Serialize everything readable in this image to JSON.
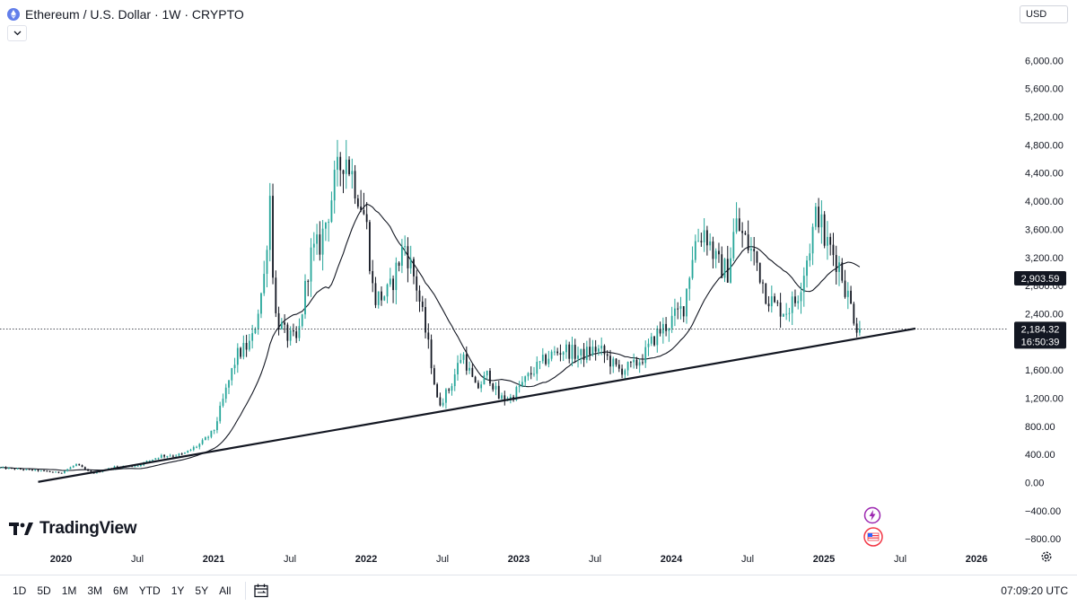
{
  "header": {
    "title": "Ethereum / U.S. Dollar · 1W · CRYPTO",
    "collapse_icon": "chevron-down-icon",
    "symbol_icon": "ethereum-icon"
  },
  "currency": {
    "label": "USD"
  },
  "logo": {
    "text": "TradingView"
  },
  "bottom_bar": {
    "ranges": [
      "1D",
      "5D",
      "1M",
      "3M",
      "6M",
      "YTD",
      "1Y",
      "5Y",
      "All"
    ],
    "time": "07:09:20 UTC"
  },
  "chart_data": {
    "type": "candlestick",
    "symbol": "ETHUSD",
    "interval": "1W",
    "colors": {
      "up": "#26a69a",
      "down": "#131722",
      "ma": "#131722",
      "trendline": "#131722",
      "crosshair": "#131722"
    },
    "y_axis": {
      "ylim": [
        -950,
        6400
      ],
      "ticks": [
        -800,
        -400,
        0,
        400,
        800,
        1200,
        1600,
        2000,
        2400,
        2800,
        3200,
        3600,
        4000,
        4400,
        4800,
        5200,
        5600,
        6000
      ],
      "tick_labels": [
        "−800.00",
        "−400.00",
        "0.00",
        "400.00",
        "800.00",
        "1,200.00",
        "1,600.00",
        "",
        "2,400.00",
        "2,800.00",
        "3,200.00",
        "3,600.00",
        "4,000.00",
        "4,400.00",
        "4,800.00",
        "5,200.00",
        "5,600.00",
        "6,000.00"
      ]
    },
    "x_axis": {
      "xlim": [
        2019.6,
        2026.2
      ],
      "ticks": [
        2020.0,
        2020.5,
        2021.0,
        2021.5,
        2022.0,
        2022.5,
        2023.0,
        2023.5,
        2024.0,
        2024.5,
        2025.0,
        2025.5,
        2026.0
      ],
      "tick_labels": [
        "2020",
        "Jul",
        "2021",
        "Jul",
        "2022",
        "Jul",
        "2023",
        "Jul",
        "2024",
        "Jul",
        "2025",
        "Jul",
        "2026"
      ]
    },
    "price_labels": [
      {
        "value": 2903.59,
        "text": "2,903.59",
        "style": "dark"
      },
      {
        "value": 2184.32,
        "text": "2,184.32",
        "countdown": "16:50:39",
        "style": "dark"
      }
    ],
    "crosshair_price": 2184.32,
    "trendline": {
      "x": [
        2019.85,
        2025.6
      ],
      "y": [
        10,
        2190
      ]
    },
    "price_path": [
      [
        2019.6,
        210
      ],
      [
        2019.85,
        170
      ],
      [
        2020.0,
        140
      ],
      [
        2020.1,
        260
      ],
      [
        2020.2,
        130
      ],
      [
        2020.35,
        220
      ],
      [
        2020.5,
        240
      ],
      [
        2020.65,
        380
      ],
      [
        2020.8,
        400
      ],
      [
        2020.92,
        560
      ],
      [
        2021.0,
        730
      ],
      [
        2021.08,
        1300
      ],
      [
        2021.15,
        1800
      ],
      [
        2021.25,
        2000
      ],
      [
        2021.33,
        2900
      ],
      [
        2021.37,
        4100
      ],
      [
        2021.4,
        2400
      ],
      [
        2021.47,
        2100
      ],
      [
        2021.55,
        2000
      ],
      [
        2021.63,
        3200
      ],
      [
        2021.7,
        3400
      ],
      [
        2021.8,
        4300
      ],
      [
        2021.86,
        4700
      ],
      [
        2021.95,
        4100
      ],
      [
        2022.0,
        3700
      ],
      [
        2022.05,
        2600
      ],
      [
        2022.15,
        2700
      ],
      [
        2022.25,
        3400
      ],
      [
        2022.33,
        2800
      ],
      [
        2022.42,
        1800
      ],
      [
        2022.47,
        1100
      ],
      [
        2022.55,
        1350
      ],
      [
        2022.63,
        1850
      ],
      [
        2022.72,
        1320
      ],
      [
        2022.8,
        1550
      ],
      [
        2022.87,
        1200
      ],
      [
        2022.95,
        1200
      ],
      [
        2023.0,
        1350
      ],
      [
        2023.1,
        1600
      ],
      [
        2023.2,
        1800
      ],
      [
        2023.3,
        1900
      ],
      [
        2023.4,
        1800
      ],
      [
        2023.5,
        1900
      ],
      [
        2023.55,
        1850
      ],
      [
        2023.65,
        1600
      ],
      [
        2023.75,
        1650
      ],
      [
        2023.82,
        1800
      ],
      [
        2023.9,
        2100
      ],
      [
        2024.0,
        2300
      ],
      [
        2024.08,
        2500
      ],
      [
        2024.15,
        3400
      ],
      [
        2024.22,
        3600
      ],
      [
        2024.3,
        3100
      ],
      [
        2024.37,
        3000
      ],
      [
        2024.42,
        3700
      ],
      [
        2024.48,
        3450
      ],
      [
        2024.55,
        3200
      ],
      [
        2024.62,
        2700
      ],
      [
        2024.68,
        2500
      ],
      [
        2024.75,
        2450
      ],
      [
        2024.82,
        2600
      ],
      [
        2024.9,
        3300
      ],
      [
        2024.96,
        3900
      ],
      [
        2025.0,
        3450
      ],
      [
        2025.05,
        3300
      ],
      [
        2025.1,
        3100
      ],
      [
        2025.15,
        2700
      ],
      [
        2025.22,
        2200
      ],
      [
        2025.24,
        2184
      ]
    ]
  }
}
